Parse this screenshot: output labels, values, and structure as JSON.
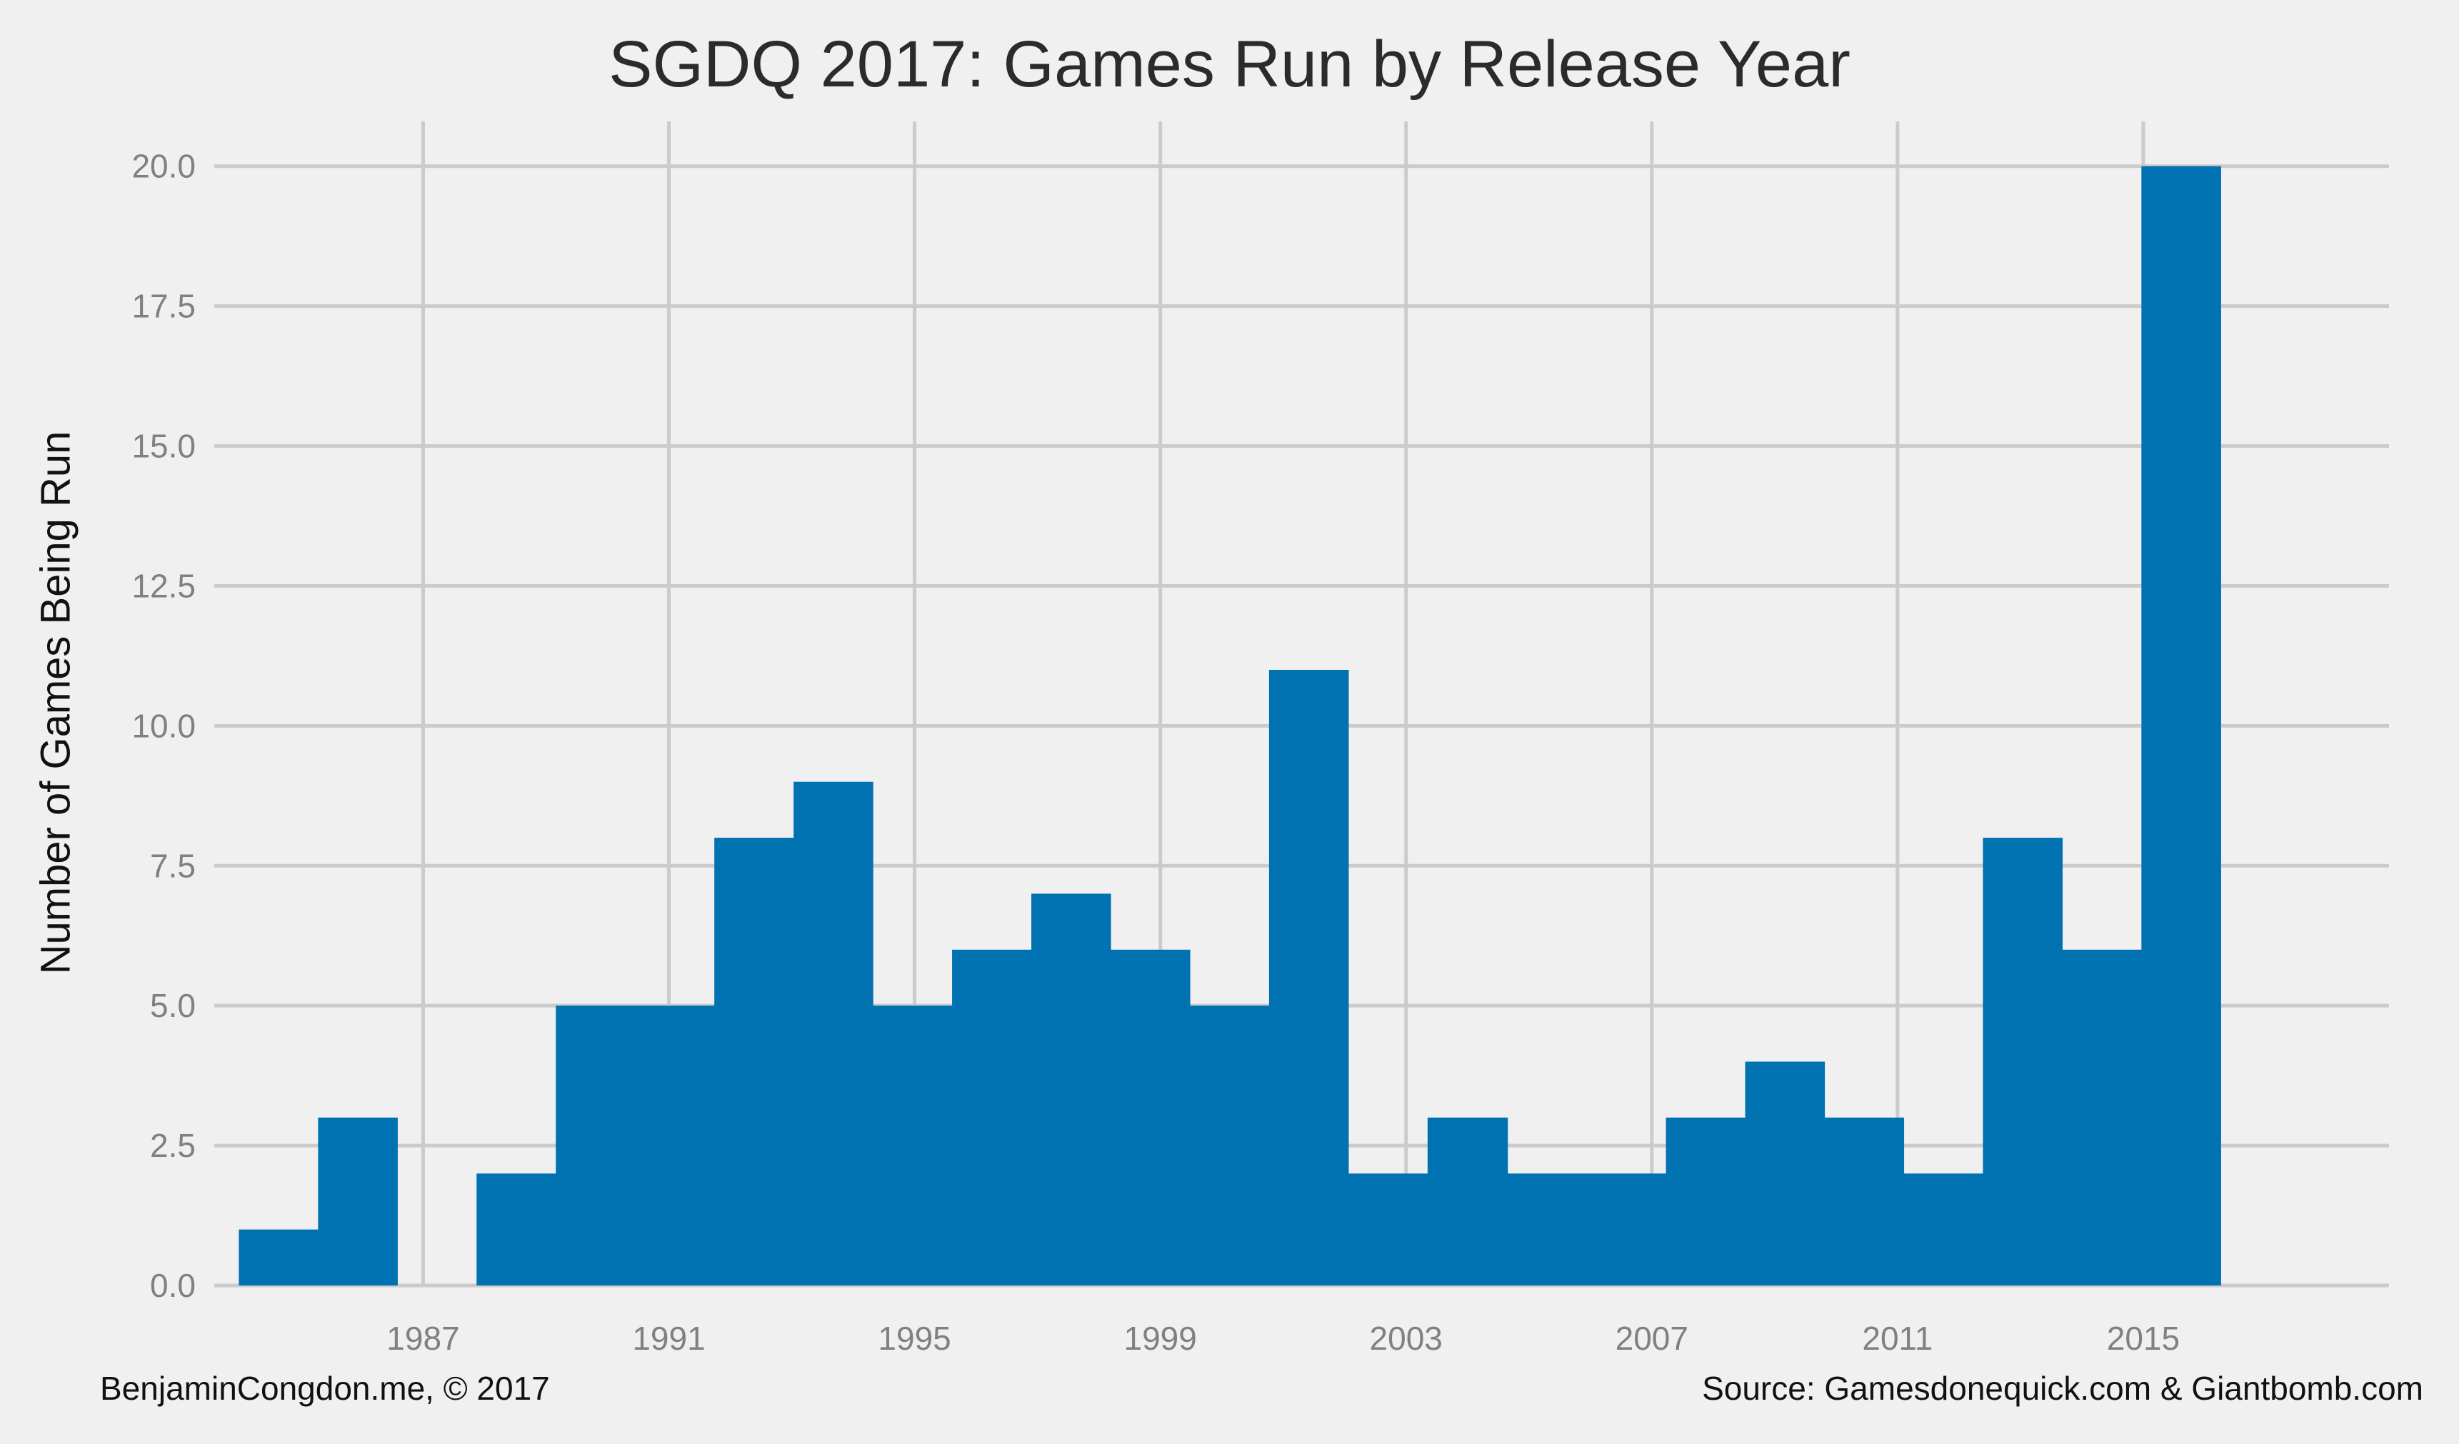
{
  "page": {
    "background": "#f0f0f0",
    "title": "SGDQ 2017: Games Run by Release Year",
    "footer_left": "BenjaminCongdon.me, © 2017",
    "footer_right": "Source: Gamesdonequick.com & Giantbomb.com"
  },
  "chart_data": {
    "type": "bar",
    "title": "SGDQ 2017: Games Run by Release Year",
    "xlabel": "",
    "ylabel": "Number of Games Being Run",
    "bar_color": "#0072b2",
    "grid_color": "#cbcbcb",
    "tick_color": "#808080",
    "grid": true,
    "legend": "none",
    "bins": [
      {
        "start": 1984.0,
        "end": 1985.29,
        "value": 1
      },
      {
        "start": 1985.29,
        "end": 1986.58,
        "value": 3
      },
      {
        "start": 1986.58,
        "end": 1987.87,
        "value": 0
      },
      {
        "start": 1987.87,
        "end": 1989.16,
        "value": 2
      },
      {
        "start": 1989.16,
        "end": 1990.45,
        "value": 5
      },
      {
        "start": 1990.45,
        "end": 1991.74,
        "value": 5
      },
      {
        "start": 1991.74,
        "end": 1993.03,
        "value": 8
      },
      {
        "start": 1993.03,
        "end": 1994.32,
        "value": 9
      },
      {
        "start": 1994.32,
        "end": 1995.61,
        "value": 5
      },
      {
        "start": 1995.61,
        "end": 1996.9,
        "value": 6
      },
      {
        "start": 1996.9,
        "end": 1998.19,
        "value": 7
      },
      {
        "start": 1998.19,
        "end": 1999.48,
        "value": 6
      },
      {
        "start": 1999.48,
        "end": 2000.77,
        "value": 5
      },
      {
        "start": 2000.77,
        "end": 2002.06,
        "value": 11
      },
      {
        "start": 2002.06,
        "end": 2003.35,
        "value": 2
      },
      {
        "start": 2003.35,
        "end": 2004.65,
        "value": 3
      },
      {
        "start": 2004.65,
        "end": 2005.94,
        "value": 2
      },
      {
        "start": 2005.94,
        "end": 2007.23,
        "value": 2
      },
      {
        "start": 2007.23,
        "end": 2008.52,
        "value": 3
      },
      {
        "start": 2008.52,
        "end": 2009.81,
        "value": 4
      },
      {
        "start": 2009.81,
        "end": 2011.1,
        "value": 3
      },
      {
        "start": 2011.1,
        "end": 2012.39,
        "value": 2
      },
      {
        "start": 2012.39,
        "end": 2013.68,
        "value": 8
      },
      {
        "start": 2013.68,
        "end": 2014.97,
        "value": 6
      },
      {
        "start": 2014.97,
        "end": 2016.26,
        "value": 20
      }
    ],
    "xlim": [
      1983.6,
      2019.0
    ],
    "ylim": [
      0,
      20.8
    ],
    "xticks": [
      1987,
      1991,
      1995,
      1999,
      2003,
      2007,
      2011,
      2015
    ],
    "xtick_labels": [
      "1987",
      "1991",
      "1995",
      "1999",
      "2003",
      "2007",
      "2011",
      "2015"
    ],
    "yticks": [
      0.0,
      2.5,
      5.0,
      7.5,
      10.0,
      12.5,
      15.0,
      17.5,
      20.0
    ],
    "ytick_labels": [
      "0.0",
      "2.5",
      "5.0",
      "7.5",
      "10.0",
      "12.5",
      "15.0",
      "17.5",
      "20.0"
    ]
  }
}
